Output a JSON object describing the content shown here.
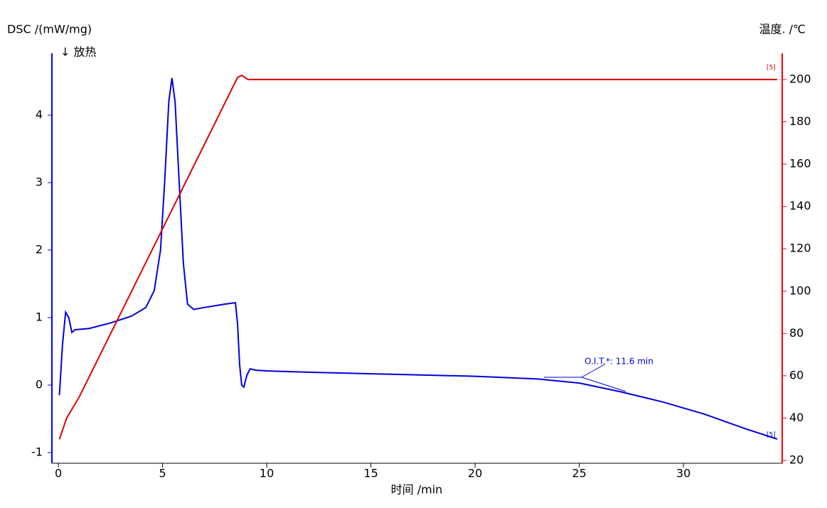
{
  "chart_data": {
    "type": "line",
    "y_label": "DSC /(mW/mg)",
    "y_sublabel": "↓ 放热",
    "y2_label": "温度. /℃",
    "x_label": "时间 /min",
    "annotations": [
      "O.I.T.*: 11.6 min",
      "[5]",
      "[5]"
    ],
    "xlim": [
      -0.31,
      34.74
    ],
    "xticks": [
      0,
      5,
      10,
      15,
      20,
      25,
      30
    ],
    "ylim": [
      -1.158,
      4.916
    ],
    "yticks": [
      -1,
      0,
      1,
      2,
      3,
      4
    ],
    "y2lim": [
      18.66,
      212.4
    ],
    "y2ticks": [
      20,
      40,
      60,
      80,
      100,
      120,
      140,
      160,
      180,
      200
    ],
    "series": [
      {
        "color": "#0000dd",
        "axis": "y",
        "x": [
          0.05,
          0.2,
          0.35,
          0.5,
          0.65,
          0.8,
          1.5,
          2.5,
          3.5,
          4.2,
          4.6,
          4.9,
          5.1,
          5.3,
          5.45,
          5.6,
          5.8,
          6.0,
          6.2,
          6.5,
          7,
          8,
          8.5,
          8.6,
          8.7,
          8.8,
          8.9,
          9.05,
          9.2,
          9.5,
          10,
          12,
          16,
          20,
          23,
          25,
          27,
          29,
          31,
          33,
          34.5
        ],
        "values": [
          -0.15,
          0.6,
          1.08,
          1.0,
          0.78,
          0.82,
          0.84,
          0.92,
          1.02,
          1.15,
          1.4,
          2.0,
          3.0,
          4.2,
          4.55,
          4.2,
          3.0,
          1.8,
          1.2,
          1.12,
          1.15,
          1.2,
          1.22,
          0.9,
          0.3,
          0.0,
          -0.03,
          0.15,
          0.24,
          0.22,
          0.21,
          0.19,
          0.16,
          0.13,
          0.09,
          0.03,
          -0.1,
          -0.25,
          -0.43,
          -0.65,
          -0.8
        ]
      },
      {
        "color": "#dd0000",
        "axis": "y2",
        "x": [
          0.05,
          0.4,
          1,
          8.6,
          8.8,
          9.1,
          34.5
        ],
        "values": [
          30,
          40,
          50,
          201,
          202,
          200,
          200
        ]
      }
    ]
  }
}
